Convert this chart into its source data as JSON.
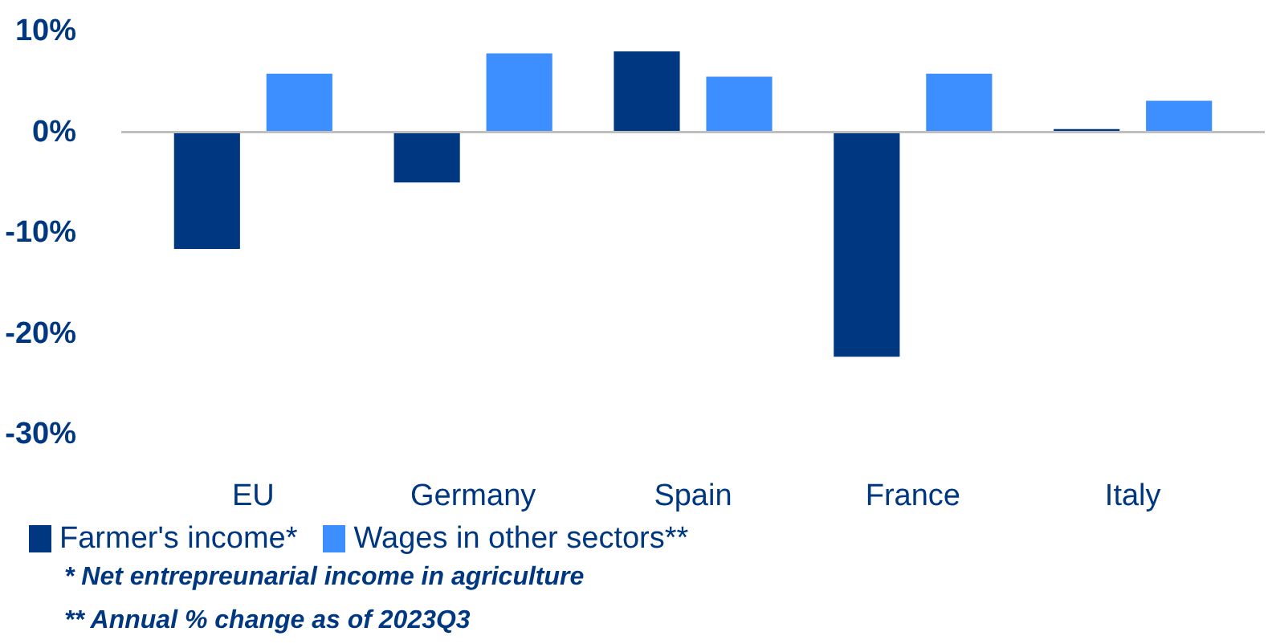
{
  "chart_data": {
    "type": "bar",
    "categories": [
      "EU",
      "Germany",
      "Spain",
      "France",
      "Italy"
    ],
    "series": [
      {
        "name": "Farmer's income*",
        "color": "#003781",
        "values": [
          -11.6,
          -5.0,
          8.0,
          -22.3,
          0.3
        ]
      },
      {
        "name": "Wages in other sectors**",
        "color": "#3d8eff",
        "values": [
          5.8,
          7.8,
          5.5,
          5.8,
          3.1
        ]
      }
    ],
    "ylim": [
      -30,
      10
    ],
    "yticks": [
      {
        "value": -30,
        "label": "-30%"
      },
      {
        "value": -20,
        "label": "-20%"
      },
      {
        "value": -10,
        "label": "-10%"
      },
      {
        "value": 0,
        "label": "0%"
      },
      {
        "value": 10,
        "label": "10%"
      }
    ],
    "ref_lines": [
      {
        "axis": "y",
        "value": 0,
        "label": null,
        "color": "#bfbfbf"
      }
    ],
    "grid": false,
    "legend": "bottom left",
    "annotations": [
      "* Net entrepreunarial income in agriculture",
      "** Annual % change as of 2023Q3"
    ]
  }
}
